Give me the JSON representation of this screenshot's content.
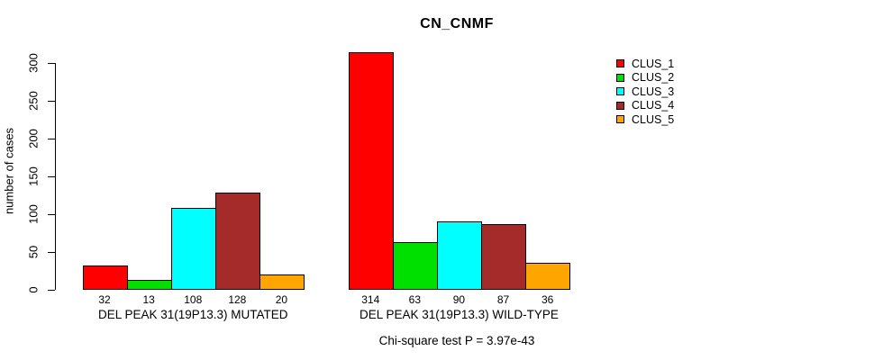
{
  "title": "CN_CNMF",
  "footnote": "Chi-square test P = 3.97e-43",
  "chart_data": {
    "type": "bar",
    "title": "CN_CNMF",
    "xlabel": "",
    "ylabel": "number of cases",
    "ylim": [
      0,
      300
    ],
    "yticks": [
      0,
      50,
      100,
      150,
      200,
      250,
      300
    ],
    "grid": false,
    "bar_value_labels": true,
    "legend_position": "upper-right-outside",
    "categories": [
      "DEL PEAK 31(19P13.3) MUTATED",
      "DEL PEAK 31(19P13.3) WILD-TYPE"
    ],
    "series": [
      {
        "name": "CLUS_1",
        "color": "#ff0000",
        "values": [
          32,
          314
        ]
      },
      {
        "name": "CLUS_2",
        "color": "#00e000",
        "values": [
          13,
          63
        ]
      },
      {
        "name": "CLUS_3",
        "color": "#00ffff",
        "values": [
          108,
          90
        ]
      },
      {
        "name": "CLUS_4",
        "color": "#a52a2a",
        "values": [
          128,
          87
        ]
      },
      {
        "name": "CLUS_5",
        "color": "#ffa500",
        "values": [
          20,
          36
        ]
      }
    ],
    "annotation": "Chi-square test P = 3.97e-43"
  }
}
